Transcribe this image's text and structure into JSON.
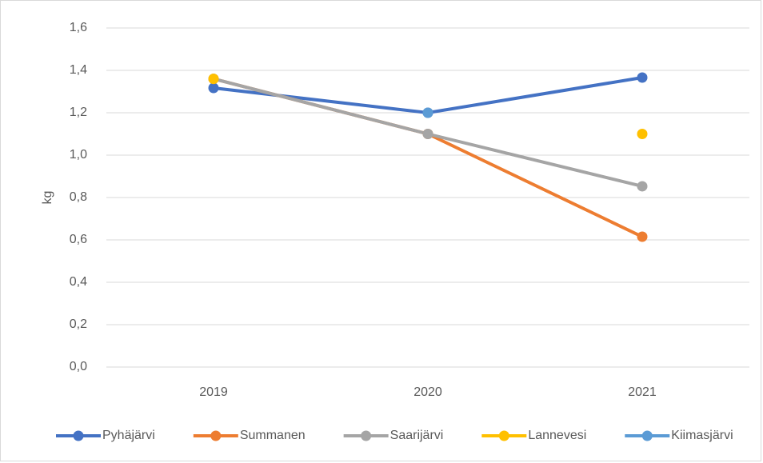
{
  "chart_data": {
    "type": "line",
    "y_label": "kg",
    "categories": [
      "2019",
      "2020",
      "2021"
    ],
    "series": [
      {
        "name": "Pyhäjärvi",
        "color": "#4472c4",
        "values": [
          1.317,
          1.2,
          1.366
        ]
      },
      {
        "name": "Summanen",
        "color": "#ed7d31",
        "values": [
          1.36,
          1.1,
          0.615
        ]
      },
      {
        "name": "Saarijärvi",
        "color": "#a5a5a5",
        "values": [
          1.36,
          1.1,
          0.853
        ]
      },
      {
        "name": "Lannevesi",
        "color": "#ffc000",
        "values": [
          1.36,
          null,
          1.1
        ]
      },
      {
        "name": "Kiimasjärvi",
        "color": "#5b9bd5",
        "values": [
          null,
          1.2,
          null
        ]
      }
    ],
    "ylim": [
      0,
      1.6
    ],
    "yticks": [
      {
        "value": 0,
        "label": "0,0"
      },
      {
        "value": 0.2,
        "label": "0,2"
      },
      {
        "value": 0.4,
        "label": "0,4"
      },
      {
        "value": 0.6,
        "label": "0,6"
      },
      {
        "value": 0.8,
        "label": "0,8"
      },
      {
        "value": 1.0,
        "label": "1,0"
      },
      {
        "value": 1.2,
        "label": "1,2"
      },
      {
        "value": 1.4,
        "label": "1,4"
      },
      {
        "value": 1.6,
        "label": "1,6"
      }
    ],
    "grid": true,
    "legend": "bottom"
  }
}
